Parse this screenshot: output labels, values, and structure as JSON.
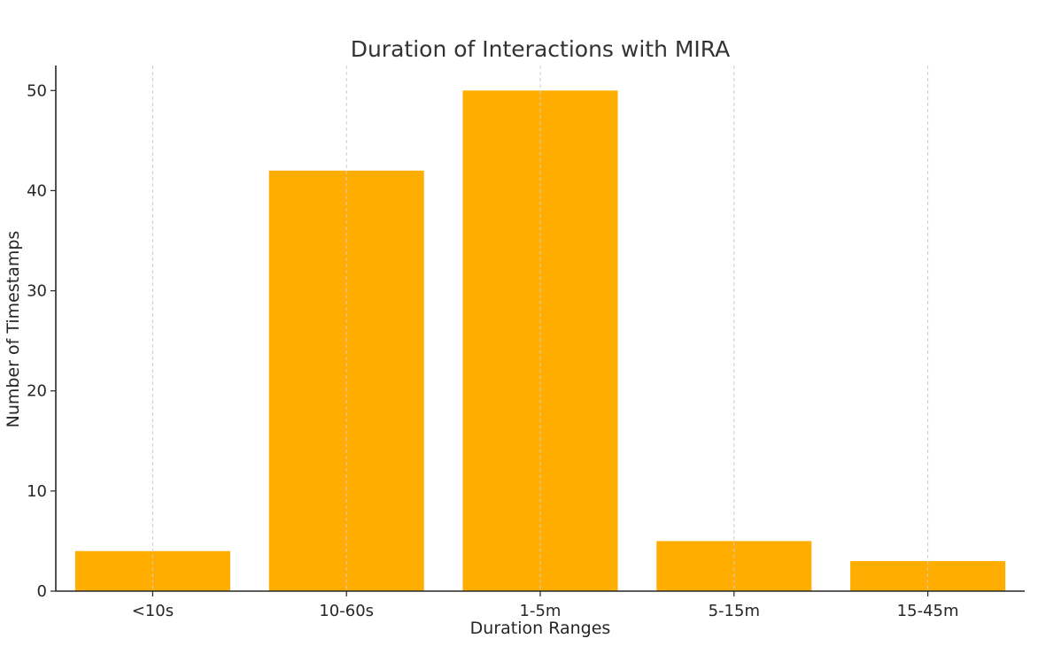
{
  "chart_data": {
    "type": "bar",
    "title": "Duration of Interactions with MIRA",
    "xlabel": "Duration Ranges",
    "ylabel": "Number of Timestamps",
    "categories": [
      "<10s",
      "10-60s",
      "1-5m",
      "5-15m",
      "15-45m"
    ],
    "values": [
      4,
      42,
      50,
      5,
      3
    ],
    "ylim": [
      0,
      52.5
    ],
    "yticks": [
      0,
      10,
      20,
      30,
      40,
      50
    ],
    "grid": "vertical, dashed",
    "bar_color": "#FFAD00",
    "legend": "none"
  }
}
